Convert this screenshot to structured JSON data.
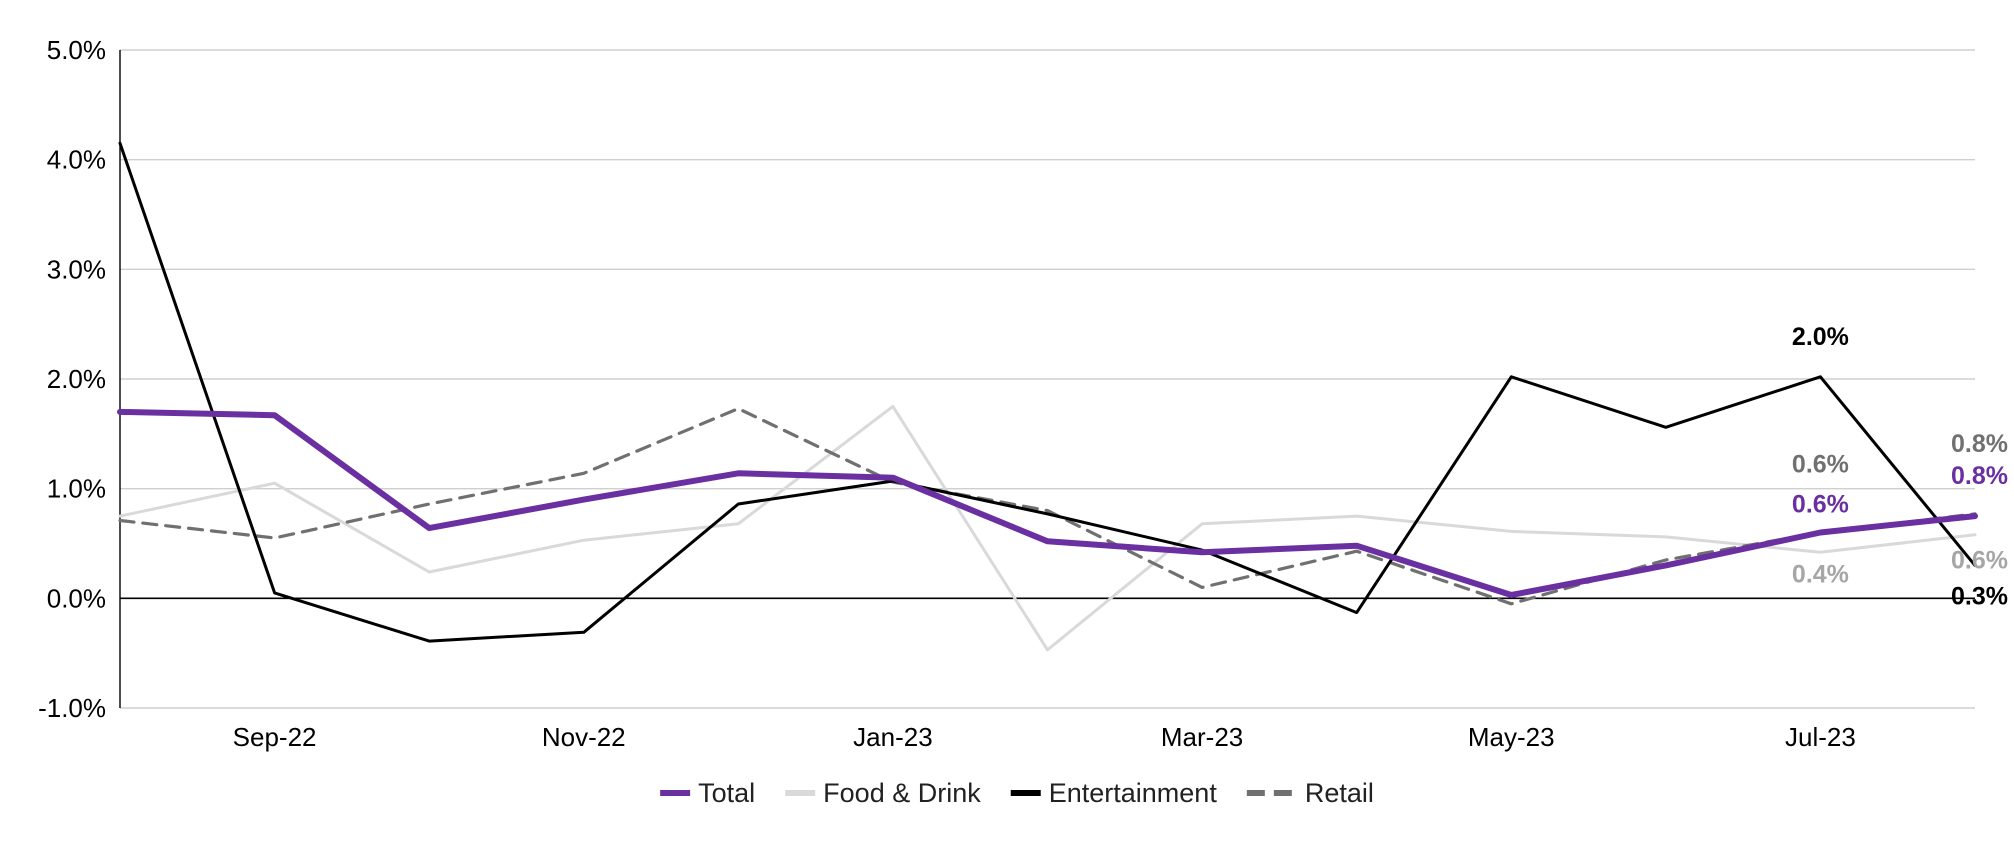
{
  "chart_data": {
    "type": "line",
    "x": [
      "Aug-22",
      "Sep-22",
      "Oct-22",
      "Nov-22",
      "Dec-22",
      "Jan-23",
      "Feb-23",
      "Mar-23",
      "Apr-23",
      "May-23",
      "Jun-23",
      "Jul-23",
      "Aug-23"
    ],
    "x_tick_labels": [
      "Sep-22",
      "Nov-22",
      "Jan-23",
      "Mar-23",
      "May-23",
      "Jul-23"
    ],
    "y_tick_labels": [
      "5.0%",
      "4.0%",
      "3.0%",
      "2.0%",
      "1.0%",
      "0.0%",
      "-1.0%"
    ],
    "ylim": [
      -1.0,
      5.0
    ],
    "y_unit": "%",
    "grid": true,
    "legend_position": "bottom",
    "series": [
      {
        "name": "Total",
        "color": "#6a2fa0",
        "style": "solid-thick",
        "values": [
          1.7,
          1.67,
          0.64,
          0.9,
          1.14,
          1.1,
          0.52,
          0.42,
          0.48,
          0.03,
          0.3,
          0.6,
          0.75
        ]
      },
      {
        "name": "Food & Drink",
        "color": "#d9d9d9",
        "style": "solid",
        "values": [
          0.75,
          1.05,
          0.24,
          0.53,
          0.68,
          1.75,
          -0.47,
          0.68,
          0.75,
          0.61,
          0.56,
          0.42,
          0.58
        ]
      },
      {
        "name": "Entertainment",
        "color": "#000000",
        "style": "solid",
        "values": [
          4.15,
          0.05,
          -0.39,
          -0.31,
          0.86,
          1.07,
          0.77,
          0.44,
          -0.13,
          2.02,
          1.56,
          2.02,
          0.3
        ]
      },
      {
        "name": "Retail",
        "color": "#707070",
        "style": "dashed",
        "values": [
          0.71,
          0.55,
          0.86,
          1.14,
          1.73,
          1.06,
          0.8,
          0.1,
          0.43,
          -0.05,
          0.35,
          0.6,
          0.77
        ]
      }
    ],
    "annotations": [
      {
        "series": "Entertainment",
        "index": 11,
        "text": "2.0%",
        "color": "#000000"
      },
      {
        "series": "Retail",
        "index": 11,
        "text": "0.6%",
        "color": "#707070"
      },
      {
        "series": "Total",
        "index": 11,
        "text": "0.6%",
        "color": "#6a2fa0"
      },
      {
        "series": "Food & Drink",
        "index": 11,
        "text": "0.4%",
        "color": "#a6a6a6"
      },
      {
        "series": "Retail",
        "index": 12,
        "text": "0.8%",
        "color": "#707070"
      },
      {
        "series": "Total",
        "index": 12,
        "text": "0.8%",
        "color": "#6a2fa0"
      },
      {
        "series": "Food & Drink",
        "index": 12,
        "text": "0.6%",
        "color": "#a6a6a6"
      },
      {
        "series": "Entertainment",
        "index": 12,
        "text": "0.3%",
        "color": "#000000"
      }
    ]
  }
}
